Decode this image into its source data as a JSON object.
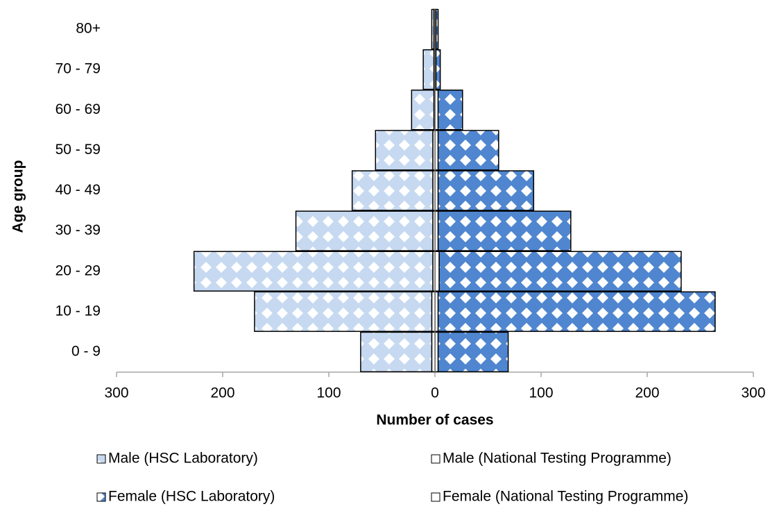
{
  "chart_data": {
    "type": "pyramid",
    "y_label": "Age group",
    "x_label": "Number of cases",
    "categories": [
      "0 - 9",
      "10 - 19",
      "20 - 29",
      "30 - 39",
      "40 - 49",
      "50 - 59",
      "60 - 69",
      "70 - 79",
      "80+"
    ],
    "series": [
      {
        "name": "Male (HSC Laboratory)",
        "color": "#c6d9f1",
        "patterned": true,
        "values": [
          -67,
          -167,
          -225,
          -129,
          -76,
          -54,
          -21,
          -10,
          -2
        ]
      },
      {
        "name": "Male (National Testing Programme)",
        "color": "#ffffff",
        "patterned": false,
        "values": [
          -3,
          -3,
          -2,
          -2,
          -2,
          -2,
          -1,
          -1,
          -1
        ]
      },
      {
        "name": "Female (HSC Laboratory)",
        "color": "#4f86cf",
        "patterned": true,
        "values": [
          66,
          261,
          228,
          125,
          90,
          57,
          23,
          4,
          2
        ]
      },
      {
        "name": "Female (National Testing Programme)",
        "color": "#ffffff",
        "patterned": false,
        "values": [
          3,
          3,
          4,
          3,
          3,
          3,
          3,
          1,
          1
        ]
      }
    ],
    "xlim": [
      -300,
      300
    ],
    "xticks": [
      {
        "value": -300,
        "label": "300"
      },
      {
        "value": -200,
        "label": "200"
      },
      {
        "value": -100,
        "label": "100"
      },
      0,
      100,
      200,
      300
    ],
    "grid": false
  }
}
